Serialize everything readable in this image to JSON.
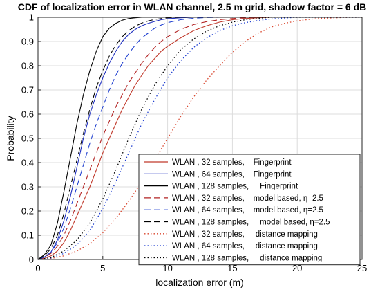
{
  "chart_data": {
    "type": "line",
    "title": "CDF of localization error in WLAN channel, 2.5 m grid, shadow factor =  6 dB",
    "xlabel": "localization error (m)",
    "ylabel": "Probability",
    "xlim": [
      0,
      25
    ],
    "ylim": [
      0,
      1
    ],
    "xticks": [
      "0",
      "5",
      "10",
      "15",
      "20",
      "25"
    ],
    "yticks": [
      "0",
      "0.1",
      "0.2",
      "0.3",
      "0.4",
      "0.5",
      "0.6",
      "0.7",
      "0.8",
      "0.9",
      "1"
    ],
    "grid": true,
    "legend_position": "bottom-right",
    "series": [
      {
        "name": "WLAN , 32 samples,    Fingerprint",
        "color": "#c0392b",
        "style": "solid",
        "x": [
          0,
          0.5,
          1,
          1.5,
          2,
          2.5,
          3,
          3.5,
          4,
          4.5,
          5,
          5.5,
          6,
          6.5,
          7,
          7.5,
          8,
          8.5,
          9,
          9.5,
          10,
          11,
          12,
          13,
          14,
          15,
          16,
          17,
          18,
          19,
          20,
          21,
          22,
          23,
          24,
          25
        ],
        "values": [
          0,
          0.005,
          0.015,
          0.035,
          0.07,
          0.12,
          0.18,
          0.24,
          0.3,
          0.37,
          0.44,
          0.5,
          0.56,
          0.62,
          0.67,
          0.72,
          0.76,
          0.8,
          0.83,
          0.86,
          0.88,
          0.915,
          0.945,
          0.965,
          0.98,
          0.99,
          0.995,
          0.998,
          1,
          1,
          1,
          1,
          1,
          1,
          1,
          1
        ]
      },
      {
        "name": "WLAN , 64 samples,    Fingerprint",
        "color": "#1f2fbf",
        "style": "solid",
        "x": [
          0,
          0.5,
          1,
          1.5,
          2,
          2.5,
          3,
          3.5,
          4,
          4.5,
          5,
          5.5,
          6,
          6.5,
          7,
          7.5,
          8,
          8.5,
          9,
          9.5,
          10,
          11,
          12,
          13,
          14,
          15,
          25
        ],
        "values": [
          0,
          0.01,
          0.03,
          0.08,
          0.16,
          0.26,
          0.38,
          0.5,
          0.6,
          0.68,
          0.75,
          0.81,
          0.86,
          0.9,
          0.93,
          0.95,
          0.965,
          0.975,
          0.983,
          0.99,
          0.994,
          0.998,
          1,
          1,
          1,
          1,
          1
        ]
      },
      {
        "name": "WLAN , 128 samples,     Fingerprint",
        "color": "#000000",
        "style": "solid",
        "x": [
          0,
          0.5,
          1,
          1.5,
          2,
          2.5,
          3,
          3.5,
          4,
          4.5,
          5,
          5.5,
          6,
          6.5,
          7,
          7.5,
          8,
          8.5,
          9,
          9.5,
          10,
          25
        ],
        "values": [
          0,
          0.02,
          0.06,
          0.15,
          0.28,
          0.42,
          0.56,
          0.68,
          0.78,
          0.86,
          0.92,
          0.955,
          0.975,
          0.988,
          0.995,
          0.998,
          1,
          1,
          1,
          1,
          1,
          1
        ]
      },
      {
        "name": "WLAN , 32 samples,    model based, η=2.5",
        "color": "#b22222",
        "style": "dashed",
        "x": [
          0,
          0.5,
          1,
          1.5,
          2,
          2.5,
          3,
          3.5,
          4,
          4.5,
          5,
          5.5,
          6,
          6.5,
          7,
          7.5,
          8,
          8.5,
          9,
          9.5,
          10,
          11,
          12,
          13,
          14,
          15,
          16,
          17,
          18,
          19,
          20,
          25
        ],
        "values": [
          0,
          0.008,
          0.025,
          0.055,
          0.1,
          0.16,
          0.23,
          0.3,
          0.37,
          0.44,
          0.51,
          0.57,
          0.63,
          0.68,
          0.73,
          0.77,
          0.81,
          0.845,
          0.875,
          0.9,
          0.92,
          0.95,
          0.97,
          0.982,
          0.99,
          0.995,
          0.998,
          1,
          1,
          1,
          1,
          1
        ]
      },
      {
        "name": "WLAN , 64 samples,    model based, η=2.5",
        "color": "#2040d0",
        "style": "dashed",
        "x": [
          0,
          0.5,
          1,
          1.5,
          2,
          2.5,
          3,
          3.5,
          4,
          4.5,
          5,
          5.5,
          6,
          6.5,
          7,
          7.5,
          8,
          8.5,
          9,
          9.5,
          10,
          11,
          12,
          13,
          14,
          15,
          16,
          25
        ],
        "values": [
          0,
          0.01,
          0.03,
          0.07,
          0.13,
          0.21,
          0.3,
          0.39,
          0.48,
          0.56,
          0.63,
          0.7,
          0.76,
          0.81,
          0.85,
          0.885,
          0.915,
          0.935,
          0.955,
          0.968,
          0.978,
          0.99,
          0.996,
          0.999,
          1,
          1,
          1,
          1
        ]
      },
      {
        "name": "WLAN , 128 samples,     model based, η=2.5",
        "color": "#000000",
        "style": "dashed",
        "x": [
          0,
          0.5,
          1,
          1.5,
          2,
          2.5,
          3,
          3.5,
          4,
          4.5,
          5,
          5.5,
          6,
          6.5,
          7,
          7.5,
          8,
          8.5,
          9,
          9.5,
          10,
          11,
          12,
          13,
          25
        ],
        "values": [
          0,
          0.015,
          0.045,
          0.1,
          0.19,
          0.3,
          0.41,
          0.52,
          0.62,
          0.71,
          0.78,
          0.84,
          0.885,
          0.92,
          0.945,
          0.963,
          0.976,
          0.985,
          0.991,
          0.995,
          0.998,
          1,
          1,
          1,
          1
        ]
      },
      {
        "name": "WLAN , 32 samples,     distance mapping",
        "color": "#d9462e",
        "style": "dotted",
        "x": [
          0,
          1,
          2,
          3,
          4,
          5,
          6,
          7,
          8,
          9,
          10,
          11,
          12,
          13,
          14,
          15,
          16,
          17,
          18,
          19,
          20,
          21,
          22,
          23,
          24,
          25
        ],
        "values": [
          0,
          0.004,
          0.015,
          0.035,
          0.065,
          0.11,
          0.17,
          0.24,
          0.32,
          0.41,
          0.5,
          0.59,
          0.67,
          0.74,
          0.8,
          0.855,
          0.9,
          0.935,
          0.96,
          0.975,
          0.985,
          0.992,
          0.996,
          0.998,
          1,
          1
        ]
      },
      {
        "name": "WLAN , 64 samples,     distance mapping",
        "color": "#1f3fd0",
        "style": "dotted",
        "x": [
          0,
          1,
          2,
          3,
          4,
          5,
          6,
          7,
          8,
          9,
          10,
          11,
          12,
          13,
          14,
          15,
          16,
          17,
          18,
          19,
          20,
          25
        ],
        "values": [
          0,
          0.006,
          0.025,
          0.06,
          0.12,
          0.21,
          0.32,
          0.44,
          0.56,
          0.66,
          0.75,
          0.82,
          0.875,
          0.915,
          0.945,
          0.965,
          0.978,
          0.987,
          0.993,
          0.997,
          1,
          1
        ]
      },
      {
        "name": "WLAN , 128 samples,     distance mapping",
        "color": "#000000",
        "style": "dotted",
        "x": [
          0,
          1,
          2,
          3,
          4,
          5,
          6,
          7,
          8,
          9,
          10,
          11,
          12,
          13,
          14,
          15,
          16,
          17,
          18,
          25
        ],
        "values": [
          0,
          0.008,
          0.035,
          0.08,
          0.15,
          0.25,
          0.37,
          0.5,
          0.62,
          0.72,
          0.8,
          0.865,
          0.91,
          0.943,
          0.965,
          0.98,
          0.99,
          0.996,
          1,
          1
        ]
      }
    ]
  }
}
